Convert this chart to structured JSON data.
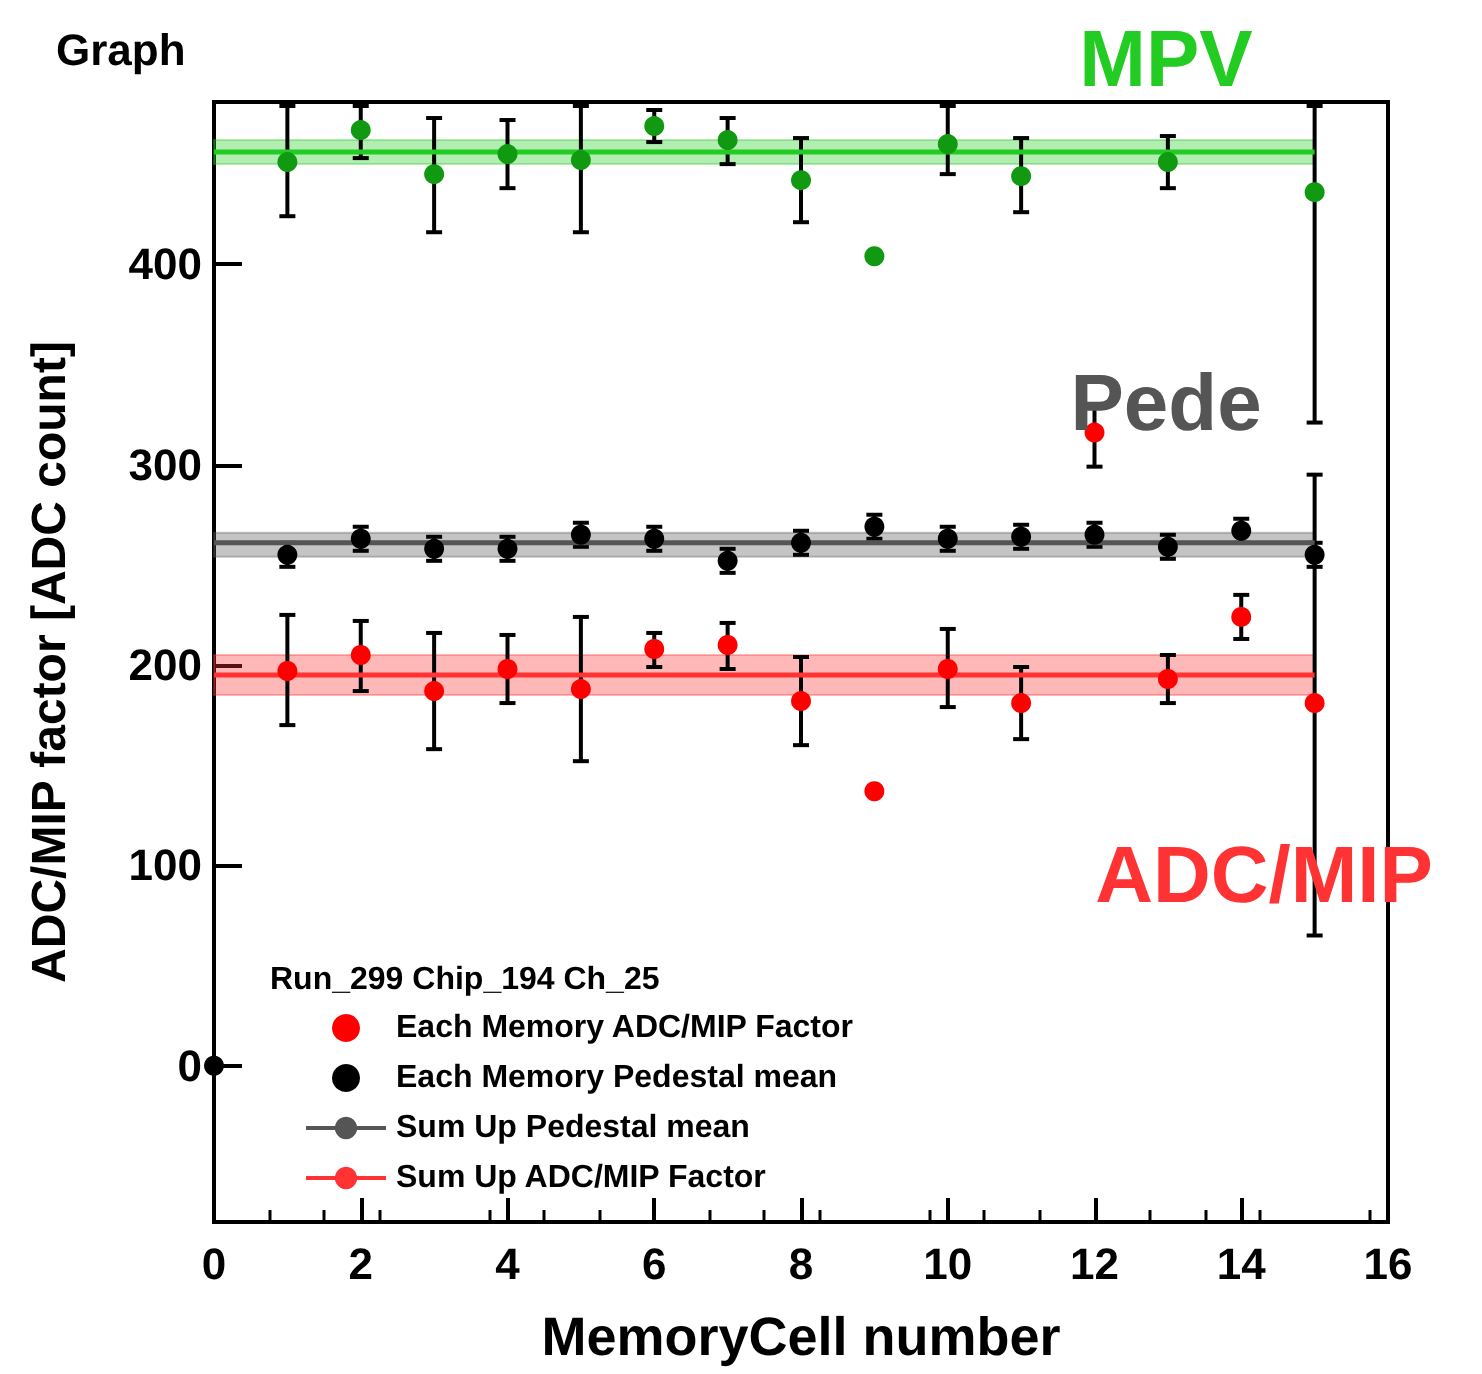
{
  "chart_data": {
    "type": "scatter",
    "title": "Graph",
    "xlabel": "MemoryCell number",
    "ylabel": "ADC/MIP factor [ADC count]",
    "legend_title": "Run_299 Chip_194 Ch_25",
    "xlim": [
      0,
      16
    ],
    "xticks": [
      0,
      2,
      4,
      6,
      8,
      10,
      12,
      14,
      16
    ],
    "ylim": [
      -78,
      481
    ],
    "yticks": [
      0,
      100,
      200,
      300,
      400
    ],
    "grid": false,
    "legend": "bottom left",
    "marker": "circle",
    "annotations": [
      "MPV",
      "Pede",
      "ADC/MIP"
    ],
    "series": [
      {
        "name": "Each Memory ADC/MIP Factor",
        "color": "#ff0000",
        "x": [
          1,
          2,
          3,
          4,
          5,
          6,
          7,
          8,
          9,
          10,
          11,
          12,
          13,
          14,
          15
        ],
        "values": [
          197,
          205,
          187,
          198,
          188,
          208,
          210,
          182,
          137,
          198,
          181,
          316,
          193,
          224,
          181
        ],
        "errors": [
          [
            170,
            225
          ],
          [
            187,
            222
          ],
          [
            158,
            216
          ],
          [
            181,
            215
          ],
          [
            152,
            224
          ],
          [
            199,
            216
          ],
          [
            198,
            221
          ],
          [
            160,
            204
          ],
          null,
          [
            179,
            218
          ],
          [
            163,
            199
          ],
          [
            299,
            330
          ],
          [
            181,
            205
          ],
          [
            213,
            235
          ],
          [
            65,
            295
          ]
        ]
      },
      {
        "name": "Each Memory Pedestal mean",
        "color": "#000000",
        "x": [
          0,
          1,
          2,
          3,
          4,
          5,
          6,
          7,
          8,
          9,
          10,
          11,
          12,
          13,
          14,
          15
        ],
        "values": [
          0,
          255,
          263,
          258,
          258,
          265,
          263,
          252,
          261,
          269,
          263,
          264,
          265,
          259,
          267,
          255
        ],
        "errors": [
          null,
          6,
          6,
          6,
          6,
          6,
          6,
          6,
          6,
          6,
          6,
          6,
          6,
          6,
          6,
          6
        ]
      },
      {
        "color": "#119911",
        "x": [
          1,
          2,
          3,
          4,
          5,
          6,
          7,
          8,
          9,
          10,
          11,
          13,
          15
        ],
        "values": [
          451,
          467,
          445,
          455,
          452,
          469,
          462,
          442,
          404,
          460,
          444,
          451,
          436
        ],
        "errors": [
          [
            424,
            479
          ],
          [
            453,
            479
          ],
          [
            416,
            473
          ],
          [
            438,
            472
          ],
          [
            416,
            479
          ],
          [
            461,
            477
          ],
          [
            450,
            473
          ],
          [
            421,
            463
          ],
          null,
          [
            445,
            479
          ],
          [
            426,
            463
          ],
          [
            438,
            464
          ],
          [
            321,
            479
          ]
        ]
      },
      {
        "type": "line",
        "marker": "none",
        "color": "#22cc22",
        "x": [
          0,
          15
        ],
        "values": [
          456,
          456
        ],
        "lower": [
          450,
          450
        ],
        "upper": [
          462,
          462
        ]
      },
      {
        "name": "Sum Up Pedestal mean",
        "type": "line",
        "marker": "none",
        "color": "#555555",
        "x": [
          0,
          15
        ],
        "values": [
          261,
          261
        ],
        "lower": [
          254,
          254
        ],
        "upper": [
          266,
          266
        ]
      },
      {
        "name": "Sum Up ADC/MIP Factor",
        "type": "line",
        "marker": "none",
        "color": "#ff3333",
        "x": [
          0,
          15
        ],
        "values": [
          195,
          195
        ],
        "lower": [
          185,
          185
        ],
        "upper": [
          205,
          205
        ]
      }
    ]
  }
}
